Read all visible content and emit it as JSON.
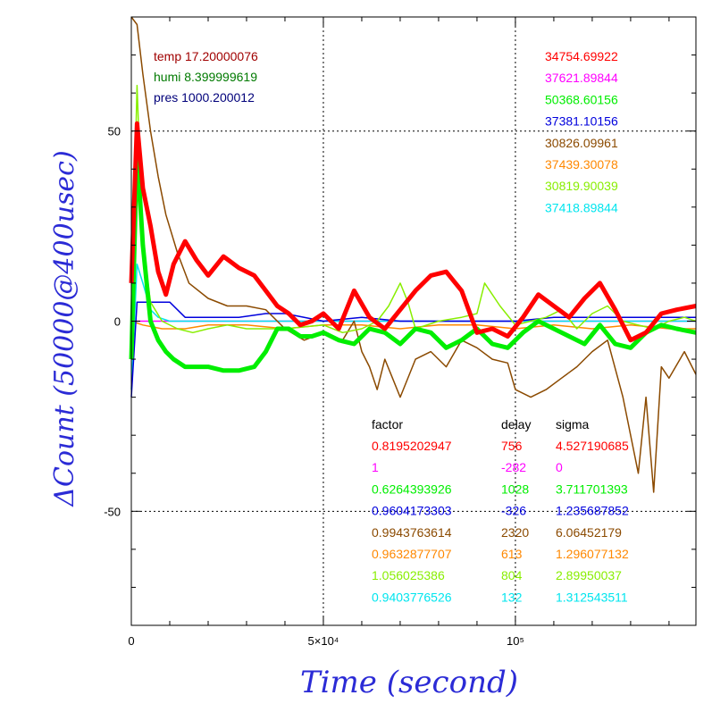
{
  "chart_data": {
    "type": "line",
    "xlabel": "Time (second)",
    "ylabel": "ΔCount (50000@400usec)",
    "xlim": [
      0,
      147000
    ],
    "ylim": [
      -80,
      80
    ],
    "x_ticks": [
      {
        "value": 0,
        "label": "0"
      },
      {
        "value": 50000,
        "label": "5×10⁴"
      },
      {
        "value": 100000,
        "label": "10⁵"
      }
    ],
    "y_ticks": [
      {
        "value": -50,
        "label": "-50"
      },
      {
        "value": 0,
        "label": "0"
      },
      {
        "value": 50,
        "label": "50"
      }
    ],
    "grid": true,
    "env": [
      {
        "text": "temp 17.20000076",
        "color": "#a00000"
      },
      {
        "text": "humi 8.399999619",
        "color": "#007a00"
      },
      {
        "text": "pres 1000.200012",
        "color": "#00007a"
      }
    ],
    "table_headers": [
      "factor",
      "delay",
      "sigma"
    ],
    "series": [
      {
        "name": "34754.69922",
        "color": "#ff0000",
        "factor": "0.8195202947",
        "delay": "756",
        "sigma": "4.527190685",
        "x": [
          0,
          1500,
          3000,
          5000,
          7000,
          9000,
          11000,
          14000,
          17000,
          20000,
          24000,
          28000,
          32000,
          35000,
          38000,
          41000,
          44000,
          47000,
          50000,
          54000,
          58000,
          62000,
          66000,
          70000,
          74000,
          78000,
          82000,
          86000,
          90000,
          94000,
          98000,
          102000,
          106000,
          110000,
          114000,
          118000,
          122000,
          126000,
          130000,
          134000,
          138000,
          142000,
          147000
        ],
        "y": [
          10,
          52,
          35,
          25,
          13,
          7,
          15,
          21,
          16,
          12,
          17,
          14,
          12,
          8,
          4,
          2,
          -1,
          0,
          2,
          -2,
          8,
          1,
          -2,
          3,
          8,
          12,
          13,
          8,
          -3,
          -2,
          -4,
          1,
          7,
          4,
          1,
          6,
          10,
          3,
          -5,
          -3,
          2,
          3,
          4
        ]
      },
      {
        "name": "37621.89844",
        "color": "#ff00ff",
        "factor": "1",
        "delay": "-282",
        "sigma": "0",
        "x": [
          0,
          147000
        ],
        "y": [
          0,
          0
        ]
      },
      {
        "name": "50368.60156",
        "color": "#00ee00",
        "factor": "0.6264393926",
        "delay": "1028",
        "sigma": "3.711701393",
        "x": [
          0,
          1500,
          3000,
          5000,
          7000,
          9000,
          11000,
          14000,
          17000,
          20000,
          24000,
          28000,
          32000,
          35000,
          38000,
          41000,
          44000,
          47000,
          50000,
          54000,
          58000,
          62000,
          66000,
          70000,
          74000,
          78000,
          82000,
          86000,
          90000,
          94000,
          98000,
          102000,
          106000,
          110000,
          114000,
          118000,
          122000,
          126000,
          130000,
          134000,
          138000,
          142000,
          147000
        ],
        "y": [
          -10,
          45,
          20,
          0,
          -5,
          -8,
          -10,
          -12,
          -12,
          -12,
          -13,
          -13,
          -12,
          -8,
          -2,
          -2,
          -4,
          -4,
          -3,
          -5,
          -6,
          -2,
          -3,
          -6,
          -2,
          -3,
          -7,
          -5,
          -2,
          -6,
          -7,
          -3,
          0,
          -2,
          -4,
          -6,
          -1,
          -6,
          -7,
          -3,
          -1,
          -2,
          -3
        ]
      },
      {
        "name": "37381.10156",
        "color": "#0000dd",
        "factor": "0.9604173303",
        "delay": "-326",
        "sigma": "1.235687852",
        "x": [
          0,
          1500,
          3000,
          6000,
          10000,
          14000,
          17000,
          20000,
          24000,
          28000,
          35000,
          40000,
          50000,
          60000,
          70000,
          80000,
          90000,
          100000,
          110000,
          120000,
          130000,
          140000,
          147000
        ],
        "y": [
          -20,
          5,
          5,
          5,
          5,
          1,
          1,
          1,
          1,
          1,
          2,
          2,
          0,
          1,
          0,
          0,
          0,
          0,
          1,
          1,
          1,
          1,
          1
        ]
      },
      {
        "name": "30826.09961",
        "color": "#8b4a00",
        "factor": "0.9943763614",
        "delay": "2320",
        "sigma": "6.06452179",
        "x": [
          0,
          1500,
          3000,
          5000,
          7000,
          9000,
          12000,
          15000,
          20000,
          25000,
          30000,
          35000,
          40000,
          45000,
          50000,
          55000,
          58000,
          60000,
          62000,
          64000,
          66000,
          68000,
          70000,
          74000,
          78000,
          82000,
          86000,
          90000,
          94000,
          98000,
          100000,
          104000,
          108000,
          112000,
          116000,
          120000,
          124000,
          128000,
          132000,
          134000,
          136000,
          138000,
          140000,
          144000,
          147000
        ],
        "y": [
          80,
          78,
          65,
          50,
          38,
          28,
          18,
          10,
          6,
          4,
          4,
          3,
          -2,
          -5,
          -3,
          -5,
          0,
          -8,
          -12,
          -18,
          -10,
          -15,
          -20,
          -10,
          -8,
          -12,
          -5,
          -7,
          -10,
          -11,
          -18,
          -20,
          -18,
          -15,
          -12,
          -8,
          -5,
          -20,
          -40,
          -20,
          -45,
          -12,
          -15,
          -8,
          -14
        ]
      },
      {
        "name": "37439.30078",
        "color": "#ff8800",
        "factor": "0.9632877707",
        "delay": "613",
        "sigma": "1.296077132",
        "x": [
          0,
          3000,
          8000,
          14000,
          20000,
          30000,
          40000,
          50000,
          60000,
          70000,
          80000,
          90000,
          100000,
          110000,
          120000,
          130000,
          140000,
          147000
        ],
        "y": [
          0,
          -1,
          -2,
          -2,
          -1,
          -1,
          -2,
          -1,
          -1,
          -2,
          -1,
          -1,
          -2,
          -1,
          -2,
          -1,
          -2,
          -2
        ]
      },
      {
        "name": "30819.90039",
        "color": "#88ee00",
        "factor": "1.056025386",
        "delay": "804",
        "sigma": "2.89950037",
        "x": [
          0,
          1500,
          3000,
          5000,
          8000,
          12000,
          16000,
          20000,
          25000,
          30000,
          40000,
          50000,
          55000,
          60000,
          64000,
          67000,
          70000,
          72000,
          74000,
          80000,
          86000,
          90000,
          92000,
          96000,
          100000,
          104000,
          108000,
          112000,
          116000,
          120000,
          124000,
          128000,
          132000,
          136000,
          140000,
          144000,
          147000
        ],
        "y": [
          0,
          62,
          20,
          5,
          0,
          -2,
          -3,
          -2,
          -1,
          -2,
          -2,
          -1,
          -3,
          -2,
          0,
          4,
          10,
          5,
          -2,
          0,
          1,
          2,
          10,
          4,
          -1,
          0,
          1,
          3,
          -2,
          2,
          4,
          0,
          -1,
          -2,
          0,
          1,
          0
        ]
      },
      {
        "name": "37418.89844",
        "color": "#00e5ee",
        "factor": "0.9403776526",
        "delay": "132",
        "sigma": "1.312543511",
        "x": [
          0,
          1500,
          3000,
          5000,
          7000,
          10000,
          15000,
          20000,
          30000,
          40000,
          60000,
          80000,
          100000,
          120000,
          147000
        ],
        "y": [
          -18,
          15,
          10,
          3,
          1,
          0,
          0,
          0,
          0,
          0,
          0,
          0,
          0,
          0,
          0
        ]
      }
    ]
  }
}
